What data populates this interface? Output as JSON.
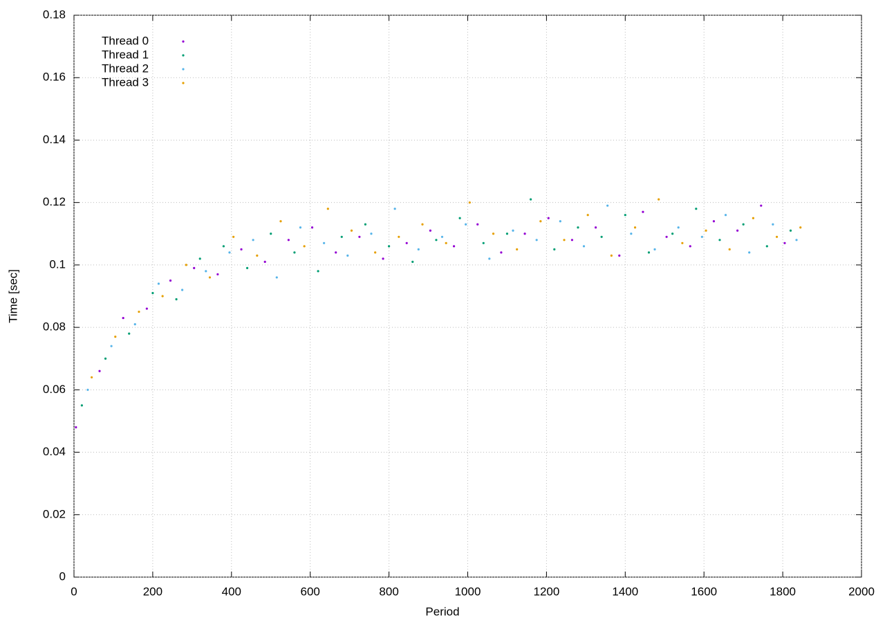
{
  "chart_data": {
    "type": "scatter",
    "xlabel": "Period",
    "ylabel": "Time [sec]",
    "xlim": [
      0,
      2000
    ],
    "ylim": [
      0,
      0.18
    ],
    "xticks": [
      0,
      200,
      400,
      600,
      800,
      1000,
      1200,
      1400,
      1600,
      1800,
      2000
    ],
    "yticks": [
      0,
      0.02,
      0.04,
      0.06,
      0.08,
      0.1,
      0.12,
      0.14,
      0.16,
      0.18
    ],
    "grid": true,
    "legend": "top-left",
    "series": [
      {
        "name": "Thread 0",
        "color": "#9400d3",
        "x": [
          5,
          65,
          125,
          185,
          245,
          305,
          365,
          425,
          485,
          545,
          605,
          665,
          725,
          785,
          845,
          905,
          965,
          1025,
          1085,
          1145,
          1205,
          1265,
          1325,
          1385,
          1445,
          1505,
          1565,
          1625,
          1685,
          1745,
          1805
        ],
        "values": [
          0.048,
          0.066,
          0.083,
          0.086,
          0.095,
          0.099,
          0.097,
          0.105,
          0.101,
          0.108,
          0.112,
          0.104,
          0.109,
          0.102,
          0.107,
          0.111,
          0.106,
          0.113,
          0.104,
          0.11,
          0.115,
          0.108,
          0.112,
          0.103,
          0.117,
          0.109,
          0.106,
          0.114,
          0.111,
          0.119,
          0.107
        ]
      },
      {
        "name": "Thread 1",
        "color": "#009e73",
        "x": [
          20,
          80,
          140,
          200,
          260,
          320,
          380,
          440,
          500,
          560,
          620,
          680,
          740,
          800,
          860,
          920,
          980,
          1040,
          1100,
          1160,
          1220,
          1280,
          1340,
          1400,
          1460,
          1520,
          1580,
          1640,
          1700,
          1760,
          1820
        ],
        "values": [
          0.055,
          0.07,
          0.078,
          0.091,
          0.089,
          0.102,
          0.106,
          0.099,
          0.11,
          0.104,
          0.098,
          0.109,
          0.113,
          0.106,
          0.101,
          0.108,
          0.115,
          0.107,
          0.11,
          0.121,
          0.105,
          0.112,
          0.109,
          0.116,
          0.104,
          0.11,
          0.118,
          0.108,
          0.113,
          0.106,
          0.111
        ]
      },
      {
        "name": "Thread 2",
        "color": "#56b4e9",
        "x": [
          35,
          95,
          155,
          215,
          275,
          335,
          395,
          455,
          515,
          575,
          635,
          695,
          755,
          815,
          875,
          935,
          995,
          1055,
          1115,
          1175,
          1235,
          1295,
          1355,
          1415,
          1475,
          1535,
          1595,
          1655,
          1715,
          1775,
          1835
        ],
        "values": [
          0.06,
          0.074,
          0.081,
          0.094,
          0.092,
          0.098,
          0.104,
          0.108,
          0.096,
          0.112,
          0.107,
          0.103,
          0.11,
          0.118,
          0.105,
          0.109,
          0.113,
          0.102,
          0.111,
          0.108,
          0.114,
          0.106,
          0.119,
          0.11,
          0.105,
          0.112,
          0.109,
          0.116,
          0.104,
          0.113,
          0.108
        ]
      },
      {
        "name": "Thread 3",
        "color": "#e69f00",
        "x": [
          45,
          105,
          165,
          225,
          285,
          345,
          405,
          465,
          525,
          585,
          645,
          705,
          765,
          825,
          885,
          945,
          1005,
          1065,
          1125,
          1185,
          1245,
          1305,
          1365,
          1425,
          1485,
          1545,
          1605,
          1665,
          1725,
          1785,
          1845
        ],
        "values": [
          0.064,
          0.077,
          0.085,
          0.09,
          0.1,
          0.096,
          0.109,
          0.103,
          0.114,
          0.106,
          0.118,
          0.111,
          0.104,
          0.109,
          0.113,
          0.107,
          0.12,
          0.11,
          0.105,
          0.114,
          0.108,
          0.116,
          0.103,
          0.112,
          0.121,
          0.107,
          0.111,
          0.105,
          0.115,
          0.109,
          0.112
        ]
      }
    ]
  }
}
